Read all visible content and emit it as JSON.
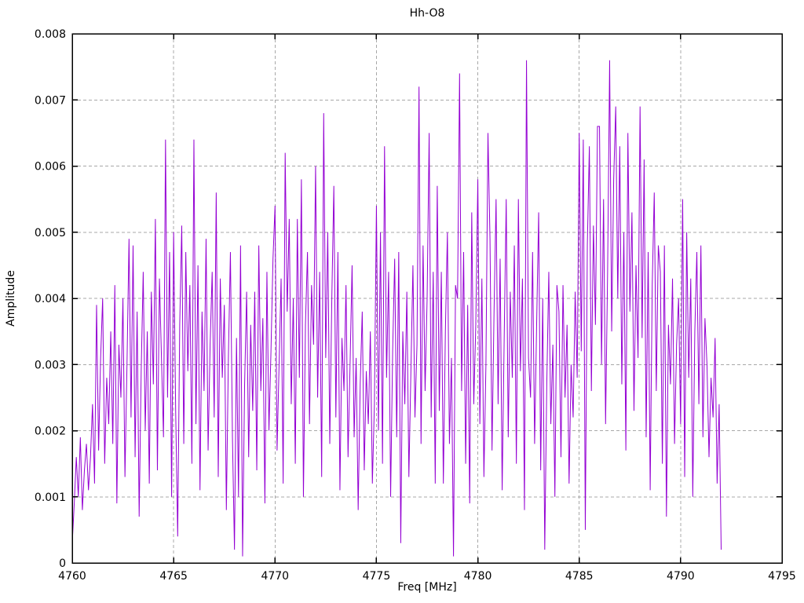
{
  "chart_data": {
    "type": "line",
    "title": "Hh-O8",
    "xlabel": "Freq [MHz]",
    "ylabel": "Amplitude",
    "xlim": [
      4760,
      4795
    ],
    "ylim": [
      0,
      0.008
    ],
    "xticks": [
      4760,
      4765,
      4770,
      4775,
      4780,
      4785,
      4790,
      4795
    ],
    "xtick_labels": [
      "4760",
      "4765",
      "4770",
      "4775",
      "4780",
      "4785",
      "4790",
      "4795"
    ],
    "yticks": [
      0,
      0.001,
      0.002,
      0.003,
      0.004,
      0.005,
      0.006,
      0.007,
      0.008
    ],
    "ytick_labels": [
      "0",
      "0.001",
      "0.002",
      "0.003",
      "0.004",
      "0.005",
      "0.006",
      "0.007",
      "0.008"
    ],
    "grid": true,
    "legend": "none",
    "line_color": "#9400d3",
    "grid_color": "#a8a8a8",
    "axis_color": "#000000",
    "background_color": "#ffffff",
    "series": [
      {
        "name": "Hh-O8",
        "x_start": 4760.0,
        "x_step": 0.1,
        "values": [
          0.0003,
          0.0009,
          0.0016,
          0.001,
          0.0019,
          0.0008,
          0.0014,
          0.0018,
          0.0011,
          0.0016,
          0.0024,
          0.0012,
          0.0039,
          0.0017,
          0.0031,
          0.004,
          0.0015,
          0.0028,
          0.0021,
          0.0035,
          0.0018,
          0.0042,
          0.0009,
          0.0033,
          0.0025,
          0.004,
          0.0013,
          0.003,
          0.0049,
          0.0022,
          0.0048,
          0.0016,
          0.0038,
          0.0007,
          0.0029,
          0.0044,
          0.002,
          0.0035,
          0.0012,
          0.0041,
          0.0027,
          0.0052,
          0.0014,
          0.0043,
          0.0031,
          0.0019,
          0.0064,
          0.0025,
          0.0047,
          0.001,
          0.005,
          0.0023,
          0.0004,
          0.0036,
          0.0051,
          0.0018,
          0.0047,
          0.0029,
          0.0042,
          0.0015,
          0.0064,
          0.0021,
          0.0045,
          0.0011,
          0.0038,
          0.0026,
          0.0049,
          0.0017,
          0.0033,
          0.0044,
          0.0022,
          0.0056,
          0.0013,
          0.0043,
          0.0028,
          0.0039,
          0.0008,
          0.0031,
          0.0047,
          0.0019,
          0.0002,
          0.0034,
          0.001,
          0.0048,
          0.0001,
          0.0027,
          0.0041,
          0.0016,
          0.0036,
          0.0023,
          0.0041,
          0.0014,
          0.0048,
          0.0026,
          0.0037,
          0.0009,
          0.0044,
          0.002,
          0.0032,
          0.0046,
          0.0054,
          0.0017,
          0.003,
          0.0043,
          0.0012,
          0.0062,
          0.0038,
          0.0052,
          0.0024,
          0.004,
          0.0015,
          0.0052,
          0.0028,
          0.0058,
          0.001,
          0.0036,
          0.0047,
          0.0021,
          0.0042,
          0.0033,
          0.006,
          0.0025,
          0.0044,
          0.0013,
          0.0068,
          0.0031,
          0.005,
          0.0018,
          0.004,
          0.0057,
          0.0022,
          0.0047,
          0.0011,
          0.0034,
          0.0026,
          0.0042,
          0.0016,
          0.003,
          0.0045,
          0.0019,
          0.0031,
          0.0008,
          0.0027,
          0.0038,
          0.0014,
          0.0029,
          0.0021,
          0.0035,
          0.0012,
          0.0024,
          0.0054,
          0.002,
          0.005,
          0.0015,
          0.0063,
          0.0028,
          0.0044,
          0.001,
          0.0032,
          0.0046,
          0.0019,
          0.0047,
          0.0003,
          0.0035,
          0.0024,
          0.0041,
          0.0013,
          0.0029,
          0.0045,
          0.0022,
          0.0033,
          0.0072,
          0.0018,
          0.0048,
          0.0026,
          0.004,
          0.0065,
          0.0022,
          0.0044,
          0.0012,
          0.0057,
          0.0023,
          0.0044,
          0.0012,
          0.0035,
          0.005,
          0.0018,
          0.0031,
          0.0001,
          0.0042,
          0.004,
          0.0074,
          0.0026,
          0.0047,
          0.0015,
          0.0039,
          0.0009,
          0.0053,
          0.0024,
          0.0036,
          0.0058,
          0.0021,
          0.0043,
          0.0013,
          0.003,
          0.0065,
          0.0049,
          0.0017,
          0.0038,
          0.0055,
          0.0024,
          0.0046,
          0.0011,
          0.0034,
          0.0055,
          0.0019,
          0.0041,
          0.0028,
          0.0048,
          0.0015,
          0.0055,
          0.0029,
          0.0043,
          0.0008,
          0.0076,
          0.0031,
          0.0025,
          0.0047,
          0.0018,
          0.0036,
          0.0053,
          0.0014,
          0.004,
          0.0002,
          0.0027,
          0.0044,
          0.0021,
          0.0033,
          0.001,
          0.0042,
          0.0038,
          0.0016,
          0.0042,
          0.0025,
          0.0036,
          0.0012,
          0.003,
          0.0022,
          0.0041,
          0.0028,
          0.0065,
          0.0032,
          0.0064,
          0.0005,
          0.0048,
          0.0063,
          0.0026,
          0.0051,
          0.0036,
          0.0066,
          0.0066,
          0.003,
          0.0055,
          0.0021,
          0.0044,
          0.0076,
          0.0035,
          0.0058,
          0.0069,
          0.004,
          0.0063,
          0.0027,
          0.005,
          0.0017,
          0.0065,
          0.0038,
          0.0053,
          0.0023,
          0.0045,
          0.0031,
          0.0069,
          0.0034,
          0.0061,
          0.0019,
          0.0047,
          0.0011,
          0.0042,
          0.0056,
          0.0026,
          0.0048,
          0.0044,
          0.0015,
          0.0048,
          0.0007,
          0.0036,
          0.0027,
          0.0043,
          0.0018,
          0.0033,
          0.004,
          0.0021,
          0.0055,
          0.0013,
          0.005,
          0.0028,
          0.0043,
          0.001,
          0.0035,
          0.0047,
          0.0024,
          0.0048,
          0.0019,
          0.0037,
          0.003,
          0.0016,
          0.0028,
          0.0022,
          0.0034,
          0.0012,
          0.0024,
          0.0002
        ]
      }
    ]
  }
}
